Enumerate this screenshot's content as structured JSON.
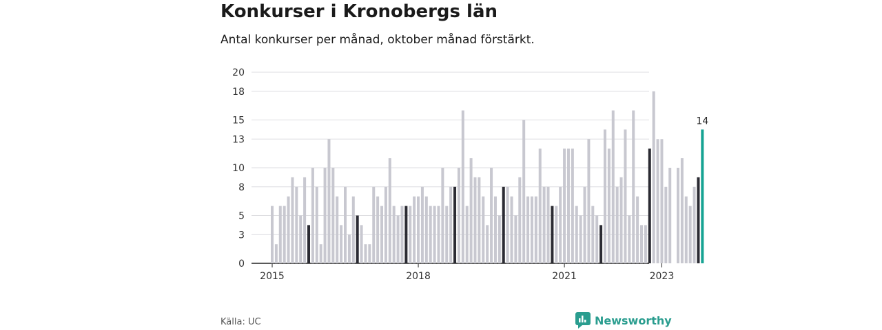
{
  "header": {
    "title": "Konkurser i Kronobergs län",
    "subtitle": "Antal konkurser per månad, oktober månad förstärkt."
  },
  "footer": {
    "source": "Källa: UC",
    "brand": "Newsworthy"
  },
  "colors": {
    "regular_bar": "#c8c8d0",
    "october_bar": "#2b2b33",
    "latest_bar": "#16a393",
    "grid": "#dcdce0",
    "brand": "#2a9d8f"
  },
  "chart_data": {
    "type": "bar",
    "title": "Konkurser i Kronobergs län",
    "subtitle": "Antal konkurser per månad, oktober månad förstärkt.",
    "xlabel": "",
    "ylabel": "",
    "ylim": [
      0,
      20
    ],
    "yticks": [
      0,
      3,
      5,
      8,
      10,
      13,
      15,
      18,
      20
    ],
    "xticks": [
      "2015",
      "2018",
      "2021",
      "2023"
    ],
    "grid": true,
    "start": "2015-01",
    "highlight_month": "oktober",
    "latest_label": "14",
    "values": [
      6,
      2,
      6,
      6,
      7,
      9,
      8,
      5,
      9,
      4,
      10,
      8,
      2,
      10,
      13,
      10,
      7,
      4,
      8,
      3,
      7,
      5,
      4,
      2,
      2,
      8,
      7,
      6,
      8,
      11,
      6,
      5,
      6,
      6,
      6,
      7,
      7,
      8,
      7,
      6,
      6,
      6,
      10,
      6,
      8,
      8,
      10,
      16,
      6,
      11,
      9,
      9,
      7,
      4,
      10,
      7,
      5,
      8,
      8,
      7,
      5,
      9,
      15,
      7,
      7,
      7,
      12,
      8,
      8,
      6,
      6,
      8,
      12,
      12,
      12,
      6,
      5,
      8,
      13,
      6,
      5,
      4,
      14,
      12,
      16,
      8,
      9,
      14,
      5,
      16,
      7,
      4,
      4,
      12,
      18,
      13,
      13,
      8,
      10,
      0,
      10,
      11,
      7,
      6,
      8,
      9,
      14
    ]
  }
}
